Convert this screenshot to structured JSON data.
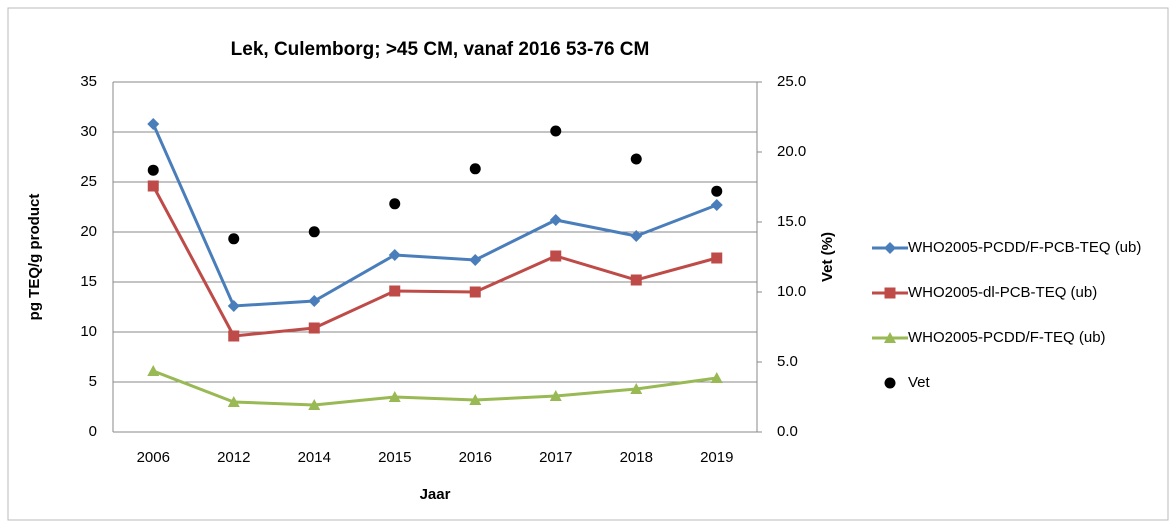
{
  "chart_data": {
    "type": "line",
    "title": "Lek, Culemborg; >45 CM, vanaf 2016 53-76 CM",
    "x_label": "Jaar",
    "y_label": "pg TEQ/g product",
    "y2_label": "Vet (%)",
    "categories": [
      "2006",
      "2012",
      "2014",
      "2015",
      "2016",
      "2017",
      "2018",
      "2019"
    ],
    "ylim": [
      0,
      35
    ],
    "yticks": [
      0,
      5,
      10,
      15,
      20,
      25,
      30,
      35
    ],
    "y2lim": [
      0,
      25
    ],
    "y2ticks": [
      {
        "value": 0,
        "label": "0.0"
      },
      {
        "value": 5,
        "label": "5.0"
      },
      {
        "value": 10,
        "label": "10.0"
      },
      {
        "value": 15,
        "label": "15.0"
      },
      {
        "value": 20,
        "label": "20.0"
      },
      {
        "value": 25,
        "label": "25.0"
      }
    ],
    "grid": true,
    "legend": "right",
    "series": [
      {
        "name": "WHO2005-PCDD/F-PCB-TEQ (ub)",
        "color": "#4a7ebb",
        "marker": "diamond",
        "values": [
          30.8,
          12.6,
          13.1,
          17.7,
          17.2,
          21.2,
          19.6,
          22.7
        ]
      },
      {
        "name": "WHO2005-dl-PCB-TEQ (ub)",
        "color": "#be4b48",
        "marker": "square",
        "values": [
          24.6,
          9.6,
          10.4,
          14.1,
          14.0,
          17.6,
          15.2,
          17.4
        ]
      },
      {
        "name": "WHO2005-PCDD/F-TEQ (ub)",
        "color": "#98b954",
        "marker": "triangle",
        "values": [
          6.1,
          3.0,
          2.7,
          3.5,
          3.2,
          3.6,
          4.3,
          5.4
        ]
      },
      {
        "name": "Vet",
        "color": "#000000",
        "marker": "circle",
        "axis": "y2",
        "values": [
          18.7,
          13.8,
          14.3,
          16.3,
          18.8,
          21.5,
          19.5,
          17.2
        ]
      }
    ]
  }
}
